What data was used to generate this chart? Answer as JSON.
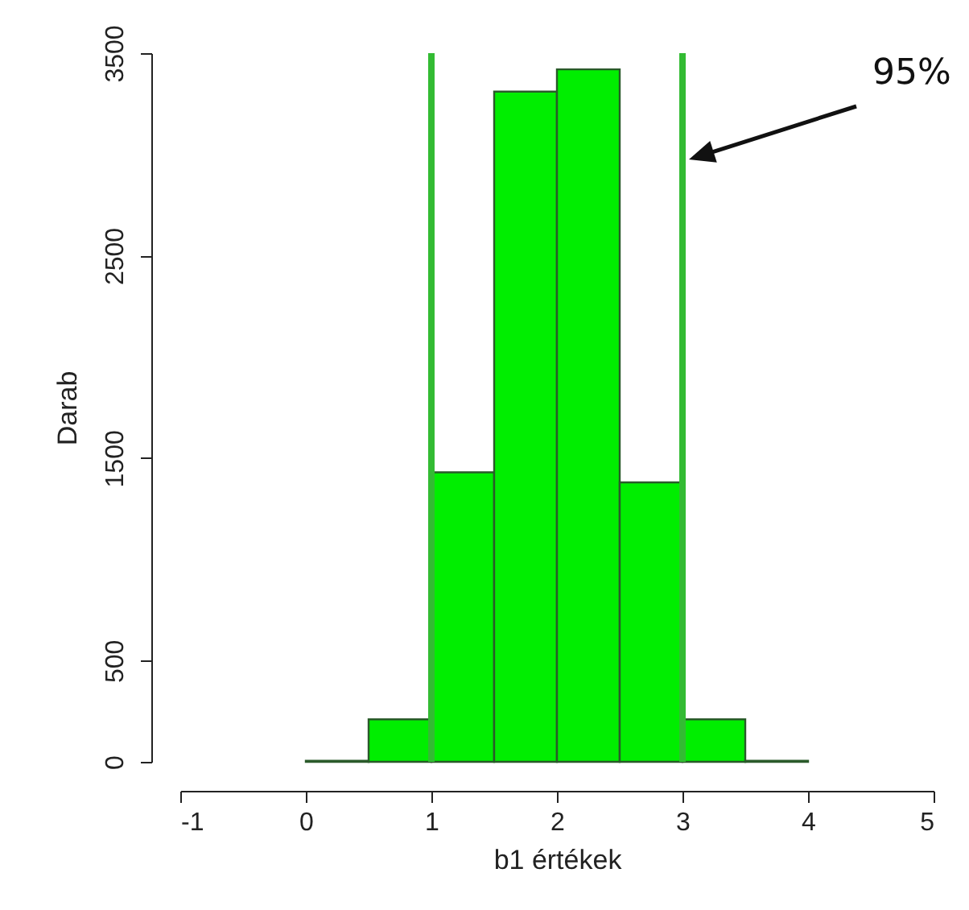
{
  "chart_data": {
    "type": "histogram",
    "xlabel": "b1 értékek",
    "ylabel": "Darab",
    "bins": [
      0,
      0.5,
      1,
      1.5,
      2,
      2.5,
      3,
      3.5,
      4
    ],
    "values": [
      5,
      210,
      1430,
      3310,
      3420,
      1380,
      210,
      5
    ],
    "color": "#00ee00",
    "xlim": [
      -1,
      5
    ],
    "xticks": [
      -1,
      0,
      1,
      2,
      3,
      4,
      5
    ],
    "ylim": [
      0,
      3500
    ],
    "yticks": [
      0,
      500,
      1500,
      2500,
      3500
    ],
    "ref_lines": [
      {
        "axis": "x",
        "value": 1,
        "label": null,
        "color": "#33bb33"
      },
      {
        "axis": "x",
        "value": 3,
        "label": null,
        "color": "#33bb33"
      }
    ],
    "annotations": [
      "95%"
    ],
    "grid": false
  }
}
